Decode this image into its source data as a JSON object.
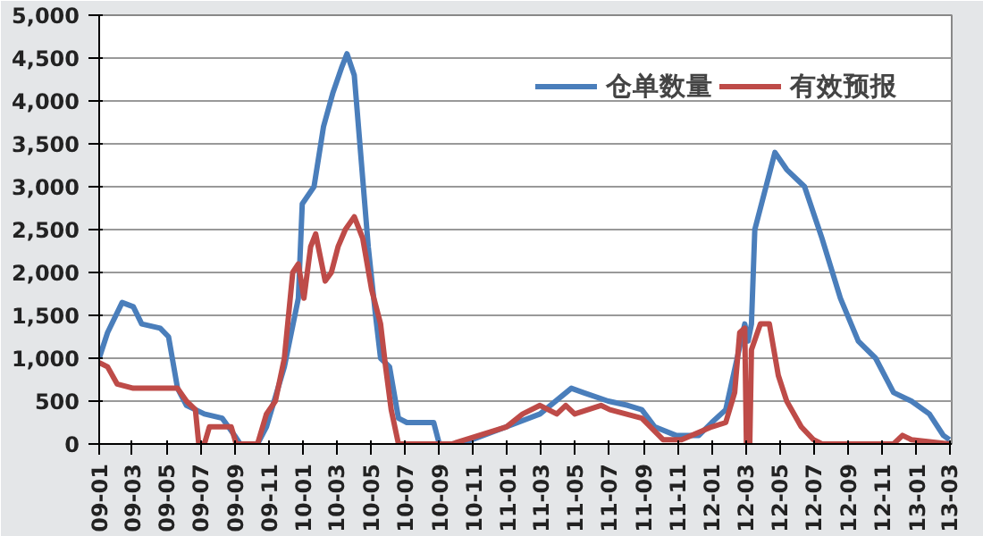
{
  "chart_data": {
    "type": "line",
    "xlim": [
      "2009-01-01",
      "2013-03-05"
    ],
    "xticks": [
      {
        "value": "2009-01-01",
        "label": "09-01"
      },
      {
        "value": "2009-03-01",
        "label": "09-03"
      },
      {
        "value": "2009-05-01",
        "label": "09-05"
      },
      {
        "value": "2009-07-01",
        "label": "09-07"
      },
      {
        "value": "2009-09-01",
        "label": "09-09"
      },
      {
        "value": "2009-11-01",
        "label": "09-11"
      },
      {
        "value": "2010-01-01",
        "label": "10-01"
      },
      {
        "value": "2010-03-01",
        "label": "10-03"
      },
      {
        "value": "2010-05-01",
        "label": "10-05"
      },
      {
        "value": "2010-07-01",
        "label": "10-07"
      },
      {
        "value": "2010-09-01",
        "label": "10-09"
      },
      {
        "value": "2010-11-01",
        "label": "10-11"
      },
      {
        "value": "2011-01-01",
        "label": "11-01"
      },
      {
        "value": "2011-03-01",
        "label": "11-03"
      },
      {
        "value": "2011-05-01",
        "label": "11-05"
      },
      {
        "value": "2011-07-01",
        "label": "11-07"
      },
      {
        "value": "2011-09-01",
        "label": "11-09"
      },
      {
        "value": "2011-11-01",
        "label": "11-11"
      },
      {
        "value": "2012-01-01",
        "label": "12-01"
      },
      {
        "value": "2012-03-01",
        "label": "12-03"
      },
      {
        "value": "2012-05-01",
        "label": "12-05"
      },
      {
        "value": "2012-07-01",
        "label": "12-07"
      },
      {
        "value": "2012-09-01",
        "label": "12-09"
      },
      {
        "value": "2012-11-01",
        "label": "12-11"
      },
      {
        "value": "2013-01-01",
        "label": "13-01"
      },
      {
        "value": "2013-03-01",
        "label": "13-03"
      }
    ],
    "ylim": [
      0,
      5000
    ],
    "yticks": [
      0,
      500,
      {
        "value": 1000,
        "label": "1,000"
      },
      {
        "value": 1500,
        "label": "1,500"
      },
      {
        "value": 2000,
        "label": "2,000"
      },
      {
        "value": 2500,
        "label": "2,500"
      },
      {
        "value": 3000,
        "label": "3,000"
      },
      {
        "value": 3500,
        "label": "3,500"
      },
      {
        "value": 4000,
        "label": "4,000"
      },
      {
        "value": 4500,
        "label": "4,500"
      },
      {
        "value": 5000,
        "label": "5,000"
      }
    ],
    "grid": "y",
    "legend": "top right",
    "series": [
      {
        "name": "仓单数量",
        "color": "#4a7ebb",
        "x": [
          "2009-01-01",
          "2009-01-16",
          "2009-02-11",
          "2009-03-03",
          "2009-03-18",
          "2009-04-20",
          "2009-05-05",
          "2009-05-21",
          "2009-06-06",
          "2009-07-08",
          "2009-08-09",
          "2009-08-31",
          "2009-09-10",
          "2009-10-11",
          "2009-10-27",
          "2009-11-28",
          "2009-12-23",
          "2009-12-30",
          "2010-01-20",
          "2010-02-06",
          "2010-02-23",
          "2010-03-11",
          "2010-03-20",
          "2010-04-02",
          "2010-04-17",
          "2010-04-27",
          "2010-05-10",
          "2010-05-19",
          "2010-06-04",
          "2010-06-20",
          "2010-07-05",
          "2010-08-22",
          "2010-09-01",
          "2010-10-09",
          "2010-12-30",
          "2011-02-28",
          "2011-04-25",
          "2011-05-16",
          "2011-06-30",
          "2011-08-04",
          "2011-08-29",
          "2011-09-21",
          "2011-10-29",
          "2011-12-09",
          "2012-01-01",
          "2012-01-26",
          "2012-02-29",
          "2012-03-06",
          "2012-03-12",
          "2012-03-18",
          "2012-04-23",
          "2012-05-14",
          "2012-06-15",
          "2012-07-16",
          "2012-08-18",
          "2012-09-19",
          "2012-10-20",
          "2012-11-21",
          "2012-12-23",
          "2013-01-24",
          "2013-02-18",
          "2013-03-01"
        ],
        "values": [
          1000,
          1300,
          1650,
          1600,
          1400,
          1350,
          1250,
          650,
          450,
          350,
          300,
          100,
          0,
          0,
          200,
          900,
          1700,
          2800,
          3000,
          3700,
          4100,
          4400,
          4550,
          4300,
          3100,
          2300,
          1500,
          1000,
          900,
          300,
          250,
          250,
          0,
          0,
          200,
          350,
          650,
          600,
          500,
          450,
          400,
          200,
          100,
          100,
          250,
          400,
          1400,
          1200,
          1400,
          2500,
          3400,
          3200,
          3000,
          2400,
          1700,
          1200,
          1000,
          600,
          500,
          350,
          100,
          50
        ]
      },
      {
        "name": "有效预报",
        "color": "#be4b48",
        "x": [
          "2009-01-01",
          "2009-01-16",
          "2009-02-02",
          "2009-03-03",
          "2009-04-04",
          "2009-05-05",
          "2009-05-21",
          "2009-06-06",
          "2009-06-22",
          "2009-06-28",
          "2009-07-08",
          "2009-07-17",
          "2009-08-09",
          "2009-08-25",
          "2009-09-03",
          "2009-10-11",
          "2009-10-27",
          "2009-11-12",
          "2009-11-28",
          "2009-12-13",
          "2009-12-23",
          "2010-01-02",
          "2010-01-14",
          "2010-01-23",
          "2010-02-09",
          "2010-02-20",
          "2010-03-04",
          "2010-03-17",
          "2010-04-02",
          "2010-04-17",
          "2010-05-03",
          "2010-05-19",
          "2010-05-28",
          "2010-06-07",
          "2010-06-20",
          "2010-09-23",
          "2010-12-30",
          "2011-01-28",
          "2011-02-28",
          "2011-03-30",
          "2011-04-15",
          "2011-05-01",
          "2011-06-17",
          "2011-07-03",
          "2011-08-29",
          "2011-10-06",
          "2011-11-08",
          "2012-01-01",
          "2012-01-26",
          "2012-02-11",
          "2012-02-20",
          "2012-02-29",
          "2012-03-03",
          "2012-03-09",
          "2012-03-12",
          "2012-03-28",
          "2012-04-13",
          "2012-04-29",
          "2012-05-14",
          "2012-06-09",
          "2012-07-01",
          "2012-07-16",
          "2012-11-21",
          "2012-12-07",
          "2012-12-23",
          "2013-03-01"
        ],
        "values": [
          950,
          900,
          700,
          650,
          650,
          650,
          650,
          500,
          400,
          0,
          0,
          200,
          200,
          200,
          0,
          0,
          350,
          500,
          1000,
          2000,
          2100,
          1700,
          2300,
          2450,
          1900,
          2000,
          2300,
          2500,
          2650,
          2400,
          1800,
          1400,
          900,
          400,
          0,
          0,
          200,
          350,
          450,
          350,
          450,
          350,
          450,
          400,
          300,
          50,
          50,
          200,
          250,
          600,
          1300,
          1350,
          0,
          0,
          1100,
          1400,
          1400,
          800,
          500,
          200,
          50,
          0,
          0,
          100,
          50,
          0
        ]
      }
    ]
  }
}
